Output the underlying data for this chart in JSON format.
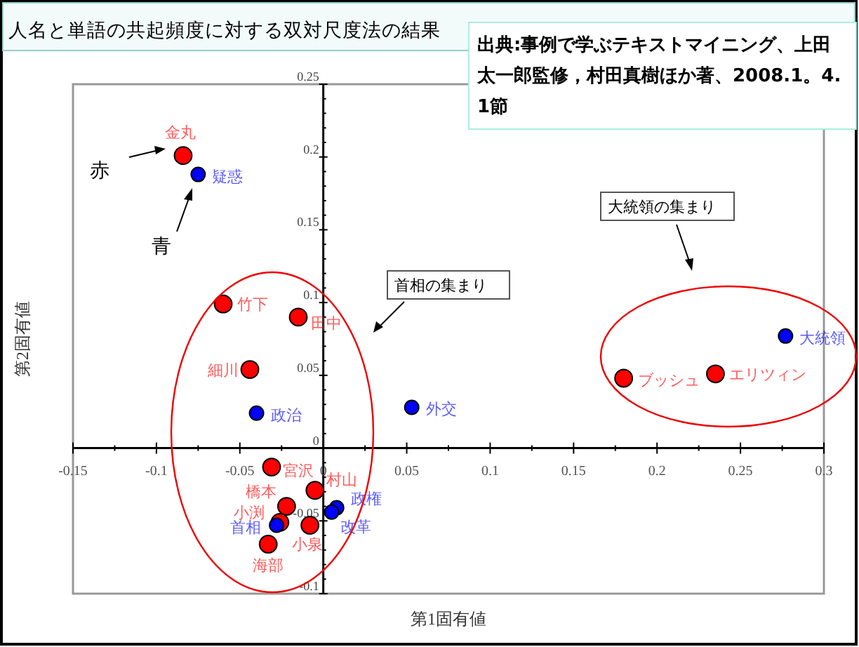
{
  "chart_data": {
    "type": "scatter",
    "title": "人名と単語の共起頻度に対する双対尺度法の結果",
    "xlabel": "第1固有値",
    "ylabel": "第2固有値",
    "xlim": [
      -0.15,
      0.3
    ],
    "ylim": [
      -0.1,
      0.25
    ],
    "xticks": [
      -0.15,
      -0.1,
      -0.05,
      0,
      0.05,
      0.1,
      0.15,
      0.2,
      0.25,
      0.3
    ],
    "yticks": [
      -0.1,
      -0.05,
      0,
      0.05,
      0.1,
      0.15,
      0.2,
      0.25
    ],
    "grid": false,
    "marker": "circle",
    "series": [
      {
        "color": "#ff0000",
        "x": [
          -0.084,
          -0.06,
          -0.015,
          -0.044,
          -0.031,
          -0.005,
          -0.022,
          -0.026,
          -0.008,
          -0.033,
          0.18,
          0.235
        ],
        "values": [
          0.201,
          0.099,
          0.09,
          0.054,
          -0.013,
          -0.029,
          -0.04,
          -0.051,
          -0.053,
          -0.066,
          0.048,
          0.051
        ]
      },
      {
        "color": "#0000ff",
        "x": [
          -0.075,
          -0.04,
          0.053,
          -0.028,
          0.008,
          0.005,
          0.277
        ],
        "values": [
          0.188,
          0.024,
          0.028,
          -0.053,
          -0.041,
          -0.044,
          0.077
        ]
      }
    ],
    "annotations": [
      {
        "text": "金丸",
        "x": -0.084,
        "y": 0.201
      },
      {
        "text": "竹下",
        "x": -0.06,
        "y": 0.099
      },
      {
        "text": "田中",
        "x": -0.015,
        "y": 0.09
      },
      {
        "text": "細川",
        "x": -0.044,
        "y": 0.054
      },
      {
        "text": "宮沢",
        "x": -0.031,
        "y": -0.013
      },
      {
        "text": "村山",
        "x": -0.005,
        "y": -0.029
      },
      {
        "text": "橋本",
        "x": -0.022,
        "y": -0.04
      },
      {
        "text": "小渕",
        "x": -0.026,
        "y": -0.051
      },
      {
        "text": "小泉",
        "x": -0.008,
        "y": -0.053
      },
      {
        "text": "海部",
        "x": -0.033,
        "y": -0.066
      },
      {
        "text": "ブッシュ",
        "x": 0.18,
        "y": 0.048
      },
      {
        "text": "エリツィン",
        "x": 0.235,
        "y": 0.051
      },
      {
        "text": "疑惑",
        "x": -0.075,
        "y": 0.188
      },
      {
        "text": "政治",
        "x": -0.04,
        "y": 0.024
      },
      {
        "text": "外交",
        "x": 0.053,
        "y": 0.028
      },
      {
        "text": "首相",
        "x": -0.028,
        "y": -0.053
      },
      {
        "text": "政権",
        "x": 0.008,
        "y": -0.041
      },
      {
        "text": "改革",
        "x": 0.005,
        "y": -0.044
      },
      {
        "text": "大統領",
        "x": 0.277,
        "y": 0.077
      },
      "赤",
      "青",
      "首相の集まり",
      "大統領の集まり",
      "出典:事例で学ぶテキストマイニング、上田太一郎監修，村田真樹ほか著、2008.1。4.1節"
    ]
  }
}
